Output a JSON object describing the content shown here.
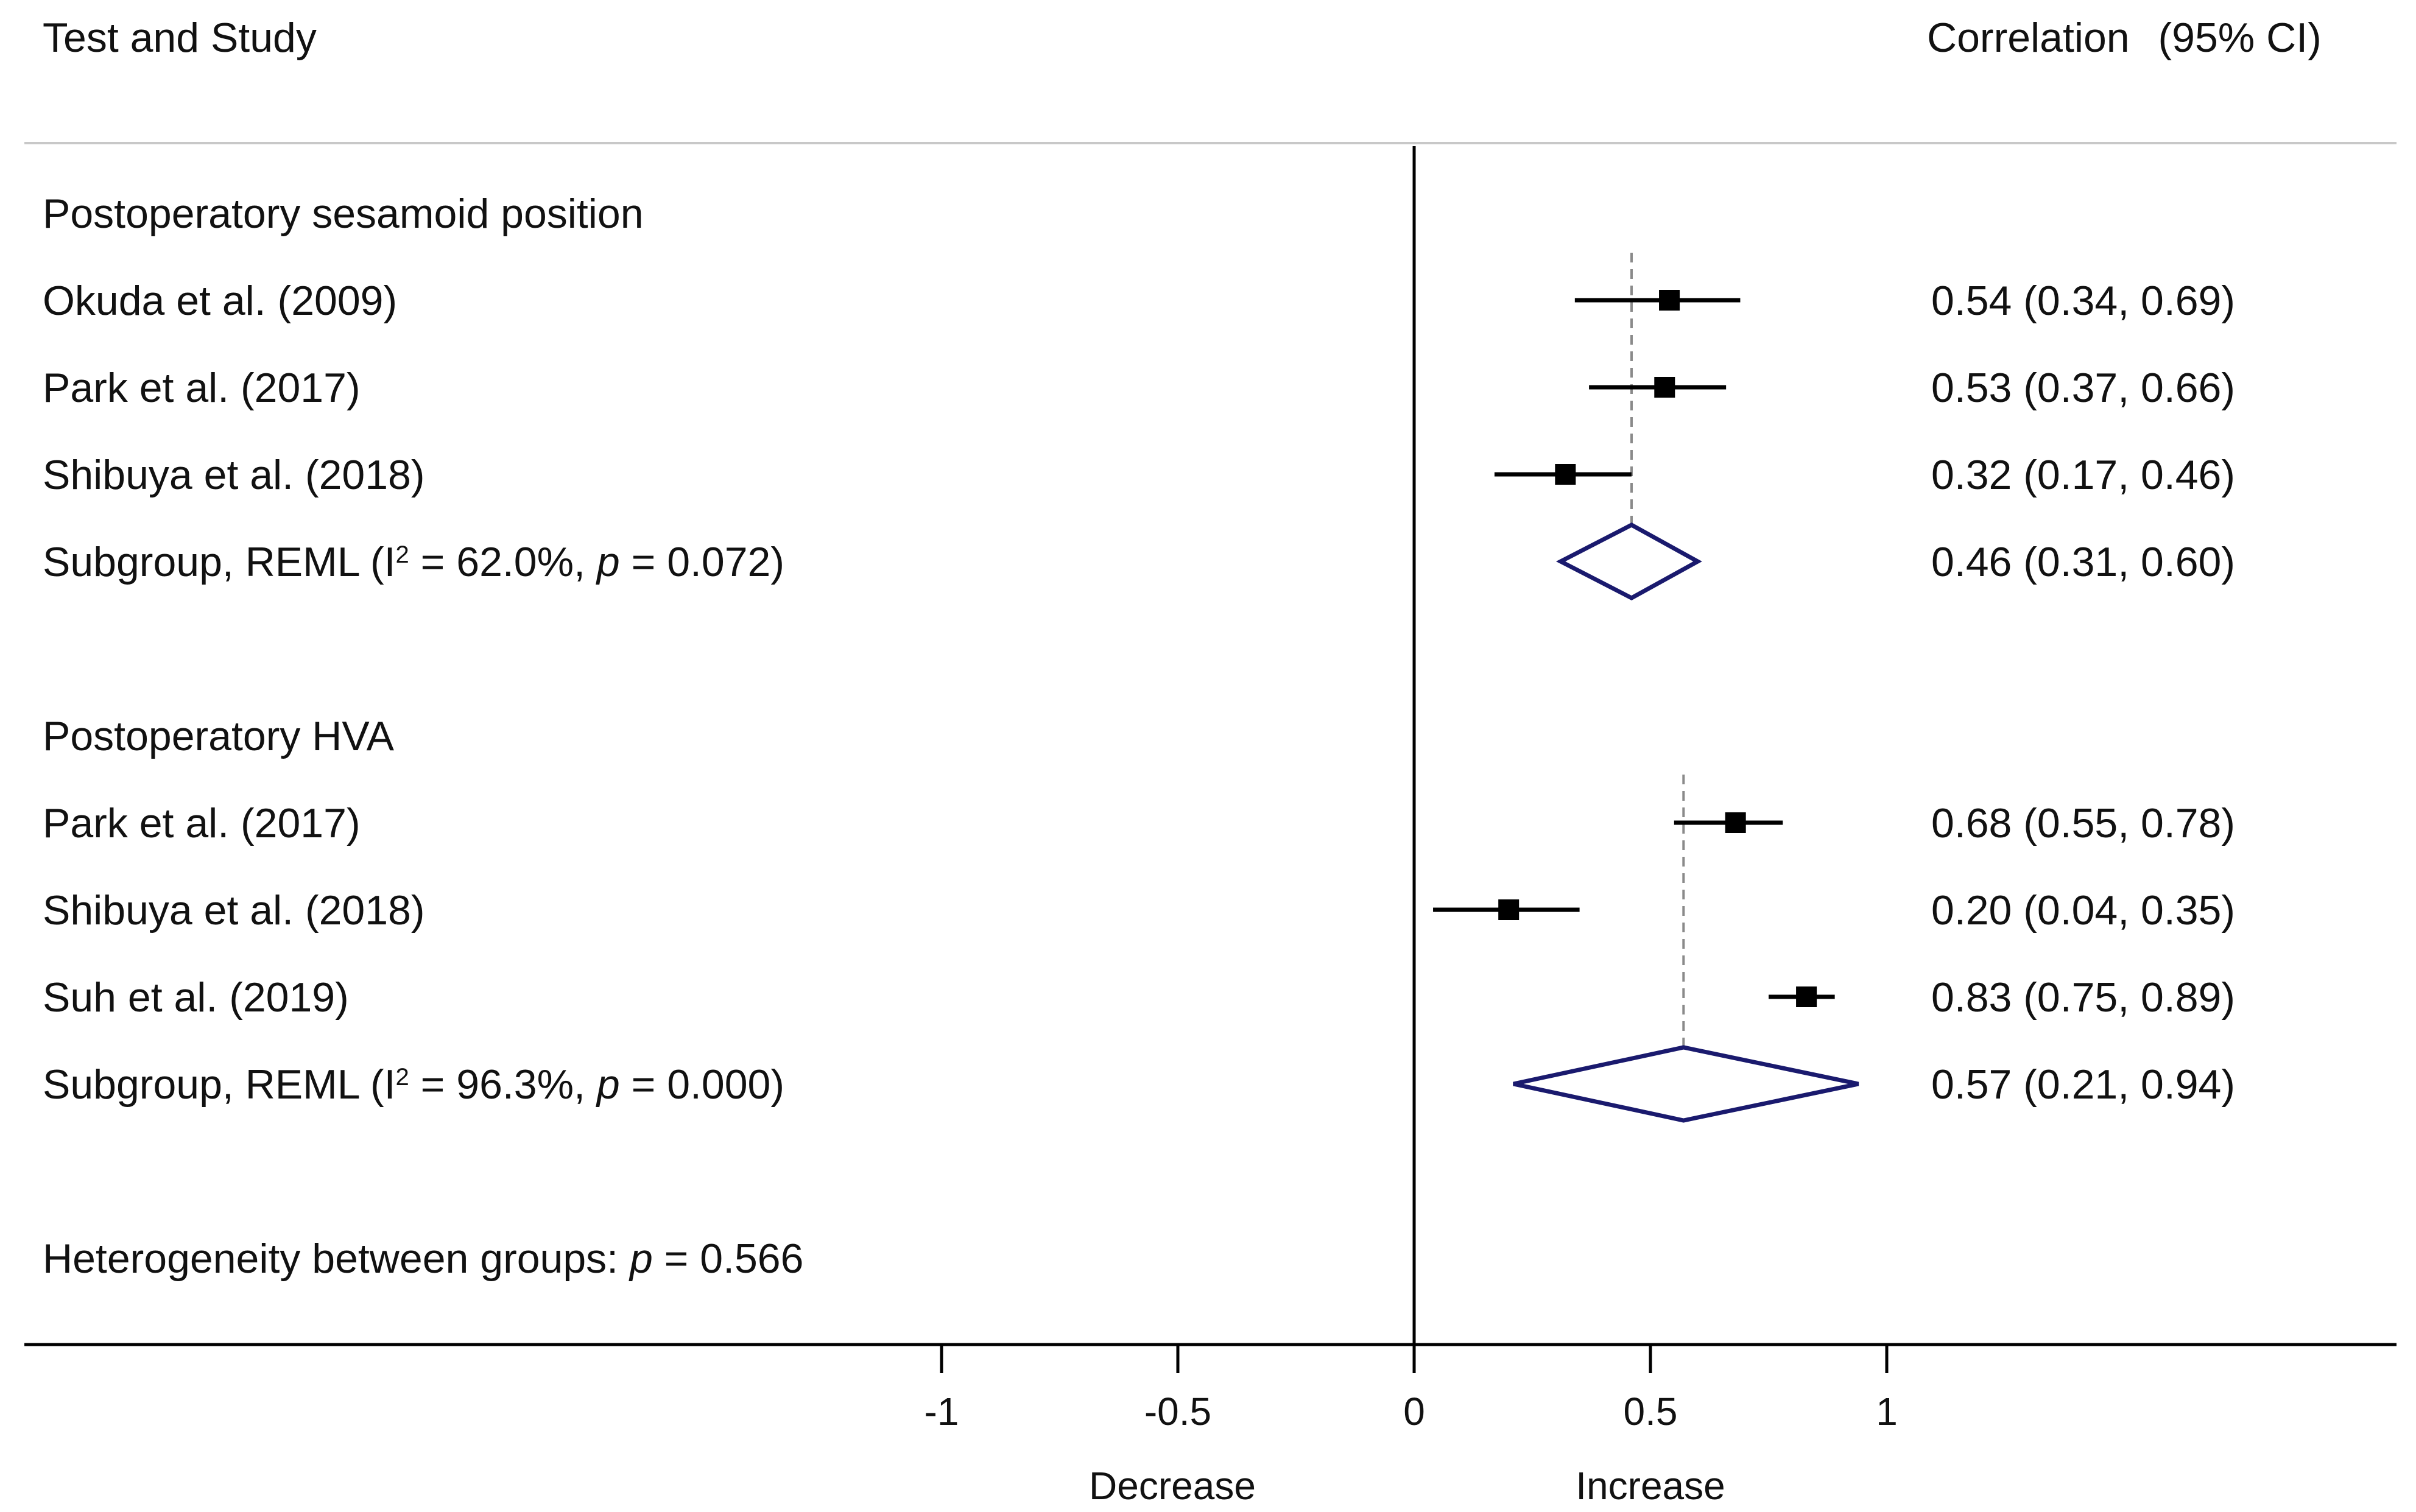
{
  "chart_data": {
    "type": "forest",
    "header": {
      "left": "Test and Study",
      "right": "Correlation",
      "right_ci": "(95% CI)"
    },
    "groups": [
      {
        "title": "Postoperatory sesamoid position",
        "studies": [
          {
            "label": "Okuda et al. (2009)",
            "estimate": 0.54,
            "lower": 0.34,
            "upper": 0.69,
            "text": "0.54 (0.34, 0.69)"
          },
          {
            "label": "Park et al. (2017)",
            "estimate": 0.53,
            "lower": 0.37,
            "upper": 0.66,
            "text": "0.53 (0.37, 0.66)"
          },
          {
            "label": "Shibuya et al. (2018)",
            "estimate": 0.32,
            "lower": 0.17,
            "upper": 0.46,
            "text": "0.32 (0.17, 0.46)"
          }
        ],
        "subgroup": {
          "prefix": "Subgroup, REML (I",
          "sup": "2",
          "mid": " = 62.0%, ",
          "p": "p",
          "suffix": " = 0.072)",
          "estimate": 0.46,
          "lower": 0.31,
          "upper": 0.6,
          "text": "0.46 (0.31, 0.60)"
        }
      },
      {
        "title": "Postoperatory HVA",
        "studies": [
          {
            "label": "Park et al. (2017)",
            "estimate": 0.68,
            "lower": 0.55,
            "upper": 0.78,
            "text": "0.68 (0.55, 0.78)"
          },
          {
            "label": "Shibuya et al. (2018)",
            "estimate": 0.2,
            "lower": 0.04,
            "upper": 0.35,
            "text": "0.20 (0.04, 0.35)"
          },
          {
            "label": "Suh et al. (2019)",
            "estimate": 0.83,
            "lower": 0.75,
            "upper": 0.89,
            "text": "0.83 (0.75, 0.89)"
          }
        ],
        "subgroup": {
          "prefix": "Subgroup, REML (I",
          "sup": "2",
          "mid": " = 96.3%, ",
          "p": "p",
          "suffix": " = 0.000)",
          "estimate": 0.57,
          "lower": 0.21,
          "upper": 0.94,
          "text": "0.57 (0.21, 0.94)"
        }
      }
    ],
    "heterogeneity": {
      "prefix": "Heterogeneity between groups: ",
      "p": "p",
      "suffix": " = 0.566"
    },
    "x_axis": {
      "range": [
        -1,
        1
      ],
      "ticks": [
        -1,
        -0.5,
        0,
        0.5,
        1
      ],
      "tick_labels": [
        "-1",
        "-0.5",
        "0",
        "0.5",
        "1"
      ],
      "direction_labels": [
        "Decrease",
        "Increase"
      ],
      "reference_line": 0
    },
    "colors": {
      "marker": "#000000",
      "diamond": "#1a1a6e",
      "dashed_line": "#8a8a8a",
      "header_rule": "#c8c8c8"
    }
  }
}
